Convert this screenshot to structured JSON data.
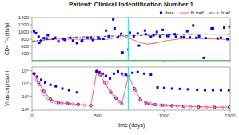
{
  "chart_data": [
    {
      "type": "line",
      "title": "Patient: Clinical Indentification Number 1",
      "y_label": "CD4 T-cells/µl",
      "xlim": [
        0,
        1500
      ],
      "ylim": [
        200,
        1400
      ],
      "xticks": [
        0,
        500,
        1000,
        1500
      ],
      "yticks": [
        400,
        600,
        800,
        1000,
        1200,
        1400
      ],
      "tick_labels": "y",
      "grid": false,
      "legend": "upper right",
      "hlines": [
        {
          "value": 200,
          "color": "#00CC00"
        }
      ],
      "vlines": [
        {
          "value": 730,
          "color": "#00FFFF"
        }
      ],
      "series": [
        {
          "name": "data",
          "type": "scatter",
          "marker": "square",
          "color": "#0000FF",
          "x": [
            15,
            30,
            50,
            70,
            90,
            120,
            160,
            200,
            250,
            290,
            340,
            380,
            420,
            460,
            500,
            540,
            580,
            615,
            650,
            685,
            730,
            770,
            810,
            855,
            900,
            945,
            990,
            1035,
            1080,
            1130,
            1175,
            1220,
            1265,
            1315,
            1360,
            1405,
            1455,
            1495,
            55,
            110,
            175,
            240,
            310,
            375,
            445,
            510,
            560,
            625,
            675,
            740,
            800,
            860,
            920,
            970,
            1025,
            1090,
            1150,
            1195,
            1245,
            1300,
            1370,
            1430,
            1480
          ],
          "values": [
            1020,
            970,
            870,
            760,
            830,
            910,
            810,
            740,
            780,
            840,
            690,
            770,
            840,
            780,
            830,
            810,
            880,
            1350,
            850,
            430,
            510,
            880,
            620,
            1040,
            870,
            1000,
            1060,
            890,
            940,
            860,
            1020,
            1180,
            880,
            830,
            1100,
            820,
            1120,
            1150,
            700,
            820,
            840,
            800,
            760,
            740,
            840,
            820,
            1040,
            1100,
            950,
            980,
            960,
            940,
            910,
            880,
            890,
            870,
            860,
            850,
            840,
            280,
            1100,
            840,
            800
          ]
        },
        {
          "name": "fit half",
          "type": "line",
          "line_style": "solid",
          "color": "#FF7070",
          "x": [
            0,
            50,
            100,
            200,
            300,
            400,
            500,
            580,
            630,
            680,
            730,
            780,
            820,
            870,
            920,
            970,
            1020,
            1080,
            1130,
            1200,
            1280,
            1350,
            1430,
            1500
          ],
          "values": [
            750,
            760,
            780,
            800,
            800,
            795,
            790,
            800,
            840,
            900,
            840,
            760,
            700,
            660,
            680,
            720,
            760,
            790,
            810,
            820,
            820,
            810,
            800,
            790
          ]
        },
        {
          "name": "fit all",
          "type": "line",
          "line_style": "dashdot",
          "color": "#555555",
          "x": [
            0,
            150,
            300,
            500,
            700,
            900,
            1100,
            1300,
            1500
          ],
          "values": [
            730,
            810,
            855,
            878,
            895,
            915,
            930,
            938,
            942
          ]
        }
      ]
    },
    {
      "type": "line",
      "x_label": "time (days)",
      "y_label": "Virus copies/ml",
      "log": "y",
      "xlim": [
        0,
        1500
      ],
      "ylim": [
        80,
        200000
      ],
      "xticks": [
        0,
        500,
        1000,
        1500
      ],
      "yticks": [
        {
          "value": 100,
          "label": "10²"
        },
        {
          "value": 1000,
          "label": "10³"
        },
        {
          "value": 10000,
          "label": "10⁴"
        },
        {
          "value": 100000,
          "label": "10⁵"
        }
      ],
      "grid": false,
      "vlines": [
        {
          "value": 730,
          "color": "#00FFFF"
        }
      ],
      "series": [
        {
          "type": "scatter",
          "marker": "square",
          "color": "#0000FF",
          "x": [
            15,
            40,
            70,
            100,
            140,
            180,
            230,
            280,
            340,
            490,
            510,
            535,
            560,
            590,
            620,
            650,
            680,
            710,
            760,
            800,
            850,
            900,
            950,
            1000,
            1060,
            1120,
            1180,
            1250,
            1310,
            1370,
            1430,
            1490
          ],
          "values": [
            60000,
            35000,
            20000,
            12000,
            8000,
            6000,
            4000,
            3000,
            2000,
            90000,
            80000,
            60000,
            40000,
            25000,
            60000,
            90000,
            60000,
            50000,
            70000,
            80000,
            60000,
            50000,
            5000,
            4500,
            4000,
            3800,
            3500,
            3200,
            3000,
            3000,
            3000,
            3000
          ]
        },
        {
          "type": "scatter",
          "marker": "open-circle",
          "color": "#FF00FF",
          "x": [
            15,
            35,
            55,
            75,
            95,
            120,
            150,
            185,
            225,
            265,
            305,
            350,
            395,
            445,
            490,
            510,
            535,
            565,
            595,
            630,
            660,
            690,
            730,
            780,
            820,
            860,
            900,
            940,
            975,
            1015,
            1055,
            1100,
            1150,
            1200,
            1260,
            1320,
            1380,
            1440,
            1495
          ],
          "values": [
            60000,
            22000,
            8000,
            3000,
            1400,
            700,
            400,
            320,
            280,
            260,
            240,
            220,
            200,
            180,
            90000,
            70000,
            45000,
            12000,
            2500,
            900,
            400,
            50000,
            35000,
            3000,
            500,
            300,
            250,
            220,
            200,
            190,
            180,
            170,
            160,
            150,
            140,
            135,
            130,
            130,
            140
          ]
        },
        {
          "type": "line",
          "line_style": "solid",
          "color": "#FF7070",
          "x": [
            15,
            50,
            90,
            140,
            200,
            270,
            350,
            445,
            490,
            515,
            550,
            595,
            635,
            680,
            730,
            775,
            820,
            870,
            930,
            990,
            1060,
            1150,
            1260,
            1380,
            1495
          ],
          "values": [
            60000,
            12000,
            2500,
            600,
            310,
            270,
            230,
            185,
            90000,
            50000,
            12000,
            2000,
            700,
            250,
            40000,
            4000,
            600,
            270,
            220,
            195,
            180,
            165,
            150,
            135,
            140
          ]
        },
        {
          "type": "scatter",
          "marker": "open-circle",
          "color": "#000000",
          "x": [
            15,
            50,
            90,
            140,
            200,
            270,
            350,
            445,
            490,
            515,
            550,
            595,
            635,
            680,
            730,
            775,
            820,
            870,
            930,
            990,
            1060,
            1150,
            1260,
            1380,
            1495
          ],
          "values": [
            60000,
            12000,
            2500,
            600,
            310,
            270,
            230,
            185,
            90000,
            50000,
            12000,
            2000,
            700,
            250,
            40000,
            4000,
            600,
            270,
            220,
            195,
            180,
            165,
            150,
            135,
            140
          ]
        }
      ]
    }
  ]
}
